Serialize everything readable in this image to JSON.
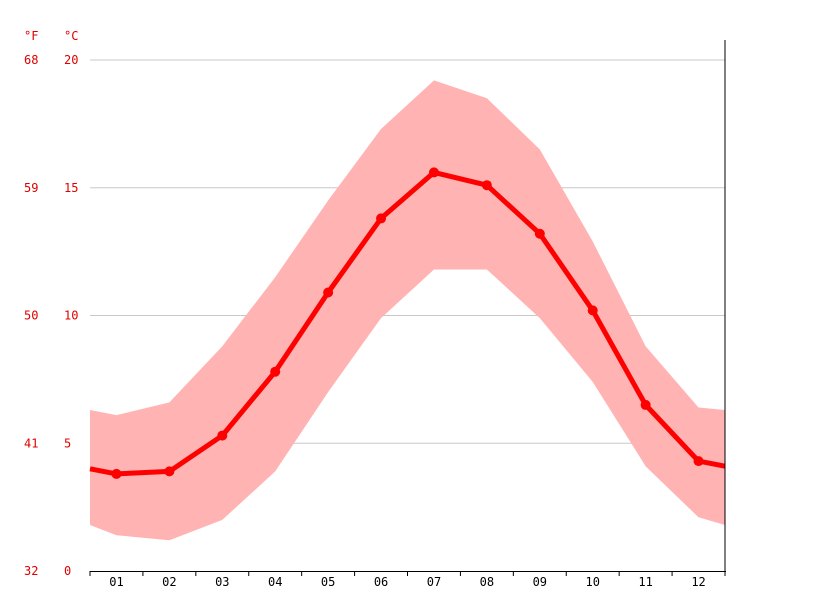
{
  "chart_data": {
    "type": "line",
    "unit_f": "°F",
    "unit_c": "°C",
    "categories": [
      "01",
      "02",
      "03",
      "04",
      "05",
      "06",
      "07",
      "08",
      "09",
      "10",
      "11",
      "12"
    ],
    "y_ticks_c": [
      "0",
      "5",
      "10",
      "15",
      "20"
    ],
    "y_ticks_f": [
      "32",
      "41",
      "50",
      "59",
      "68"
    ],
    "ylim": [
      0,
      20
    ],
    "grid": true,
    "series": [
      {
        "values": [
          3.8,
          3.9,
          5.3,
          7.8,
          10.9,
          13.8,
          15.6,
          15.1,
          13.2,
          10.2,
          6.5,
          4.3
        ]
      }
    ],
    "band": {
      "upper": [
        6.1,
        6.6,
        8.8,
        11.5,
        14.5,
        17.3,
        19.2,
        18.5,
        16.5,
        12.9,
        8.8,
        6.4
      ],
      "lower": [
        1.4,
        1.2,
        2.0,
        3.9,
        7.0,
        9.9,
        11.8,
        11.8,
        9.9,
        7.4,
        4.1,
        2.1
      ]
    },
    "edge_values": {
      "mean": [
        4.0,
        4.1
      ],
      "upper": [
        6.3,
        6.3
      ],
      "lower": [
        1.8,
        1.8
      ]
    },
    "colors": {
      "line": "#ff0000",
      "band": "#ffb3b3",
      "grid": "#c8c8c8",
      "axis_text": "#e00000"
    }
  }
}
